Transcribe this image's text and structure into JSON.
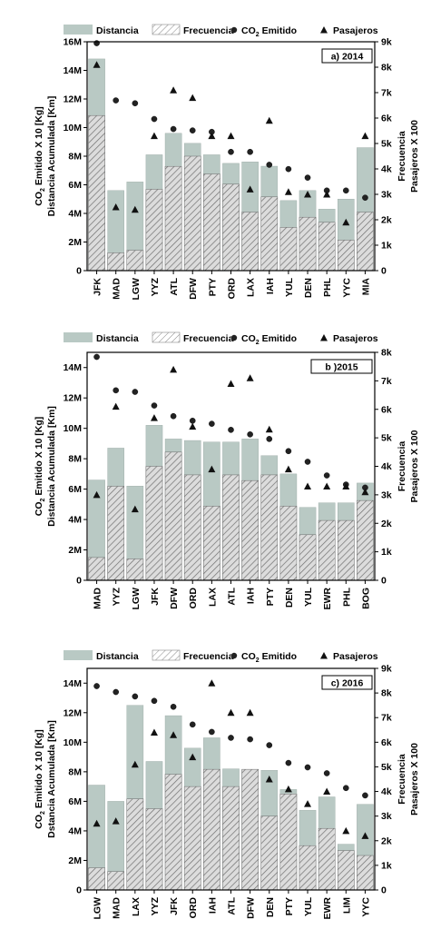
{
  "legend": {
    "distance": "Distancia",
    "frequency": "Frecuencia",
    "co2_prefix": "CO",
    "co2_sub": "2",
    "co2_suffix": " Emitido",
    "passengers": "Pasajeros"
  },
  "colors": {
    "distance": "#b9c9c4",
    "frequency_bg": "#dcdcdc",
    "hatch": "#6e6e6e",
    "axis": "#000000"
  },
  "chart_data": [
    {
      "type": "bar",
      "panel_label": "a) 2014",
      "categories": [
        "JFK",
        "MAD",
        "LGW",
        "YYZ",
        "ATL",
        "DFW",
        "PTY",
        "ORD",
        "LAX",
        "IAH",
        "YUL",
        "DEN",
        "PHL",
        "YYC",
        "MIA"
      ],
      "left_axis": {
        "ylabel_1": "Distancia Acumulada [Km]",
        "ylabel_2": "CO2 Emitido X 10 [Kg]",
        "ylim": [
          0,
          16000000
        ],
        "ticks": [
          "0",
          "2M",
          "4M",
          "6M",
          "8M",
          "10M",
          "12M",
          "14M",
          "16M"
        ]
      },
      "right_axis": {
        "ylabel_1": "Frecuencia",
        "ylabel_2": "Pasajeros X 100",
        "ylim": [
          0,
          9000
        ],
        "ticks": [
          "0",
          "1k",
          "2k",
          "3k",
          "4k",
          "5k",
          "6k",
          "7k",
          "8k",
          "9k"
        ]
      },
      "series": [
        {
          "name": "Distancia",
          "axis": "left",
          "values": [
            14800000,
            5600000,
            6200000,
            8100000,
            9600000,
            8900000,
            8100000,
            7500000,
            7600000,
            7300000,
            4900000,
            5600000,
            4300000,
            5000000,
            8600000
          ]
        },
        {
          "name": "Frecuencia",
          "axis": "right",
          "values": [
            6100,
            700,
            800,
            3200,
            4100,
            4500,
            3800,
            3400,
            2300,
            2900,
            1700,
            2100,
            1900,
            1200,
            2300
          ]
        },
        {
          "name": "CO2 Emitido",
          "axis": "left",
          "values": [
            15900000,
            11900000,
            11700000,
            10600000,
            9900000,
            9800000,
            9700000,
            8300000,
            8300000,
            7400000,
            7100000,
            6500000,
            5600000,
            5600000,
            5100000
          ]
        },
        {
          "name": "Pasajeros",
          "axis": "right",
          "values": [
            8100,
            2500,
            2400,
            5300,
            7100,
            6800,
            5300,
            5300,
            3200,
            5900,
            3100,
            3000,
            3000,
            1900,
            5300
          ]
        }
      ]
    },
    {
      "type": "bar",
      "panel_label": "b )2015",
      "categories": [
        "MAD",
        "YYZ",
        "LGW",
        "JFK",
        "DFW",
        "ORD",
        "LAX",
        "ATL",
        "IAH",
        "PTY",
        "DEN",
        "YUL",
        "EWR",
        "PHL",
        "BOG"
      ],
      "left_axis": {
        "ylabel_1": "Distancia Acumulada [Km]",
        "ylabel_2": "CO2 Emitido X 10 [Kg]",
        "ylim": [
          0,
          15000000
        ],
        "ticks": [
          "0",
          "2M",
          "4M",
          "6M",
          "8M",
          "10M",
          "12M",
          "14M"
        ]
      },
      "right_axis": {
        "ylabel_1": "Frecuencia",
        "ylabel_2": "Pasajeros X 100",
        "ylim": [
          0,
          8000
        ],
        "ticks": [
          "0",
          "1k",
          "2k",
          "3k",
          "4k",
          "5k",
          "6k",
          "7k",
          "8k"
        ]
      },
      "series": [
        {
          "name": "Distancia",
          "axis": "left",
          "values": [
            6600000,
            8700000,
            6200000,
            10200000,
            9300000,
            9200000,
            9100000,
            9100000,
            9300000,
            8200000,
            7000000,
            4800000,
            5100000,
            5100000,
            6400000
          ]
        },
        {
          "name": "Frecuencia",
          "axis": "right",
          "values": [
            800,
            3300,
            750,
            4000,
            4500,
            3700,
            2600,
            3700,
            3500,
            3700,
            2600,
            1600,
            2100,
            2100,
            2800
          ]
        },
        {
          "name": "CO2 Emitido",
          "axis": "left",
          "values": [
            14700000,
            12500000,
            12400000,
            11500000,
            10800000,
            10500000,
            10300000,
            9900000,
            9600000,
            9300000,
            8500000,
            7800000,
            6900000,
            6300000,
            6100000
          ]
        },
        {
          "name": "Pasajeros",
          "axis": "right",
          "values": [
            3000,
            6100,
            2500,
            5700,
            7400,
            5400,
            3900,
            6900,
            7100,
            5300,
            3900,
            3300,
            3300,
            3300,
            3100
          ]
        }
      ]
    },
    {
      "type": "bar",
      "panel_label": "c) 2016",
      "categories": [
        "LGW",
        "MAD",
        "LAX",
        "YYZ",
        "JFK",
        "ORD",
        "IAH",
        "ATL",
        "DFW",
        "DEN",
        "PTY",
        "YUL",
        "EWR",
        "LIM",
        "YYC"
      ],
      "left_axis": {
        "ylabel_1": "Dstancia Acumulada [Km]",
        "ylabel_2": "CO2 Emitido X 10 [Kg]",
        "ylim": [
          0,
          15000000
        ],
        "ticks": [
          "0",
          "2M",
          "4M",
          "6M",
          "8M",
          "10M",
          "12M",
          "14M"
        ]
      },
      "right_axis": {
        "ylabel_1": "Frecuencia",
        "ylabel_2": "Pasajeros X 100",
        "ylim": [
          0,
          9000
        ],
        "ticks": [
          "0",
          "1k",
          "2k",
          "3k",
          "4k",
          "5k",
          "6k",
          "7k",
          "8k",
          "9k"
        ]
      },
      "series": [
        {
          "name": "Distancia",
          "axis": "left",
          "values": [
            7100000,
            6000000,
            12500000,
            8700000,
            11800000,
            9600000,
            10300000,
            8200000,
            8100000,
            8100000,
            6800000,
            5400000,
            6300000,
            3100000,
            5800000
          ]
        },
        {
          "name": "Frecuencia",
          "axis": "right",
          "values": [
            900,
            750,
            3700,
            3300,
            4700,
            4200,
            4900,
            4200,
            4900,
            3000,
            3900,
            1800,
            2500,
            1600,
            1400
          ]
        },
        {
          "name": "CO2 Emitido",
          "axis": "left",
          "values": [
            13800000,
            13400000,
            13100000,
            12800000,
            12400000,
            11200000,
            10700000,
            10300000,
            10200000,
            9800000,
            8600000,
            8300000,
            7900000,
            6900000,
            6400000
          ]
        },
        {
          "name": "Pasajeros",
          "axis": "right",
          "values": [
            2700,
            2800,
            5100,
            6400,
            6300,
            5400,
            8400,
            7200,
            7200,
            4500,
            4100,
            3500,
            4000,
            2400,
            2200
          ]
        }
      ]
    }
  ]
}
